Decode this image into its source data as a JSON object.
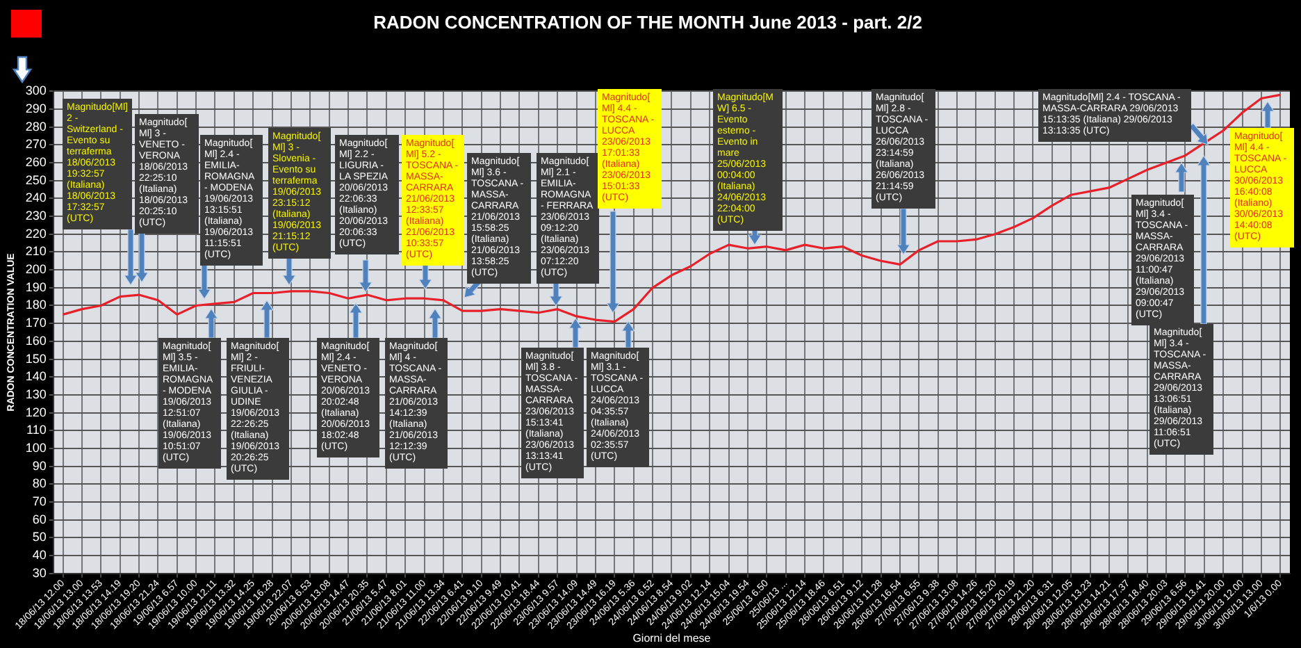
{
  "chart_data": {
    "type": "line",
    "title": "RADON CONCENTRATION OF THE MONTH June 2013 - part. 2/2",
    "xlabel": "Giorni del mese",
    "ylabel": "RADON CONCENTRATION VALUE",
    "categories": [
      "18/06/13 12.00",
      "18/06/13 13.00",
      "18/06/13 13.53",
      "18/06/13 14.19",
      "18/06/13 19.20",
      "18/06/13 21.24",
      "19/06/13 6.57",
      "19/06/13 10.00",
      "19/06/13 12.11",
      "19/06/13 13.32",
      "19/06/13 14.25",
      "19/06/13 16.28",
      "19/06/13 22.07",
      "20/06/13 6.53",
      "20/06/13 13.08",
      "20/06/13 14.47",
      "20/06/13 20.35",
      "21/06/13 5.47",
      "21/06/13 8.01",
      "21/06/13 11.00",
      "21/06/13 13.34",
      "22/06/13 6.41",
      "22/06/13 9.10",
      "22/06/13 9.49",
      "22/06/13 10.41",
      "22/06/13 18.44",
      "23/06/13 9.57",
      "23/06/13 14.09",
      "23/06/13 14.49",
      "23/06/13 16.19",
      "24/06/13 5.36",
      "24/06/13 6.52",
      "24/06/13 8.54",
      "24/06/13 9.02",
      "24/06/13 12.14",
      "24/06/13 15.04",
      "24/06/13 19.54",
      "25/06/13 6.50",
      "25/06/13 ...",
      "25/06/13 12.14",
      "25/06/13 18.46",
      "26/06/13 6.51",
      "26/06/13 9.12",
      "26/06/13 11.28",
      "26/06/13 16.54",
      "27/06/13 6.55",
      "27/06/13 9.38",
      "27/06/13 13.08",
      "27/06/13 14.26",
      "27/06/13 15.20",
      "27/06/13 20.19",
      "27/06/13 21.20",
      "28/06/13 6.31",
      "28/06/13 12.05",
      "28/06/13 13.23",
      "28/06/13 14.21",
      "28/06/13 17.37",
      "28/06/13 18.40",
      "28/06/13 20.03",
      "29/06/13 6.56",
      "29/06/13 13.41",
      "29/06/13 20.00",
      "30/06/13 12.00",
      "30/06/13 13.00",
      "1/6/13 0.00"
    ],
    "values": [
      175,
      178,
      180,
      185,
      186,
      183,
      175,
      180,
      181,
      182,
      187,
      187,
      188,
      188,
      187,
      184,
      186,
      183,
      184,
      184,
      183,
      177,
      177,
      178,
      177,
      176,
      178,
      174,
      172,
      171,
      178,
      190,
      197,
      202,
      209,
      214,
      212,
      213,
      211,
      214,
      212,
      213,
      208,
      205,
      203,
      211,
      216,
      216,
      217,
      220,
      224,
      229,
      236,
      242,
      244,
      246,
      251,
      256,
      260,
      264,
      271,
      278,
      288,
      296,
      298
    ],
    "color": "#e8202a",
    "ylim": [
      30,
      300
    ],
    "yticks": [
      30,
      40,
      50,
      60,
      70,
      80,
      90,
      100,
      110,
      120,
      130,
      140,
      150,
      160,
      170,
      180,
      190,
      200,
      210,
      220,
      230,
      240,
      250,
      260,
      270,
      280,
      290,
      300
    ],
    "grid": true,
    "annotations": [
      "Magnitudo[Ml] 2 - Switzerland - Evento su terraferma 18/06/2013 19:32:57 (Italiana) 18/06/2013 17:32:57 (UTC)",
      "Magnitudo[ Ml] 3 - VENETO - VERONA 18/06/2013 22:25:10 (Italiana) 18/06/2013 20:25:10 (UTC)",
      "Magnitudo[ Ml] 2.4 - EMILIA-ROMAGNA - MODENA 19/06/2013 13:15:51 (Italiana) 19/06/2013 11:15:51 (UTC)",
      "Magnitudo[ Ml] 3 - Slovenia - Evento su terraferma 19/06/2013 23:15:12 (Italiana) 19/06/2013 21:15:12 (UTC)",
      "Magnitudo[ Ml] 2.2 - LIGURIA - LA SPEZIA 20/06/2013 22:06:33 (Italiano) 20/06/2013 20:06:33 (UTC)",
      "Magnitudo[ Ml] 5.2 - TOSCANA - MASSA-CARRARA 21/06/2013 12:33:57 (Italiana) 21/06/2013 10:33:57 (UTC)",
      "Magnitudo[ Ml] 3.6 - TOSCANA - MASSA-CARRARA 21/06/2013 15:58:25 (Italiana) 21/06/2013 13:58:25 (UTC)",
      "Magnitudo[ Ml] 2.1 - EMILIA-ROMAGNA - FERRARA 23/06/2013 09:12:20 (Italiana) 23/06/2013 07:12:20 (UTC)",
      "Magnitudo[ Ml] 4.4 - TOSCANA - LUCCA 23/06/2013 17:01:33 (Italiana) 23/06/2013 15:01:33 (UTC)",
      "Magnitudo[M W] 6.5 - Evento esterno - Evento in mare 25/06/2013 00:04:00 (Italiana) 24/06/2013 22:04:00 (UTC)",
      "Magnitudo[ Ml] 2.8 - TOSCANA - LUCCA 26/06/2013 23:14:59 (Italiana) 26/06/2013 21:14:59 (UTC)",
      "Magnitudo[Ml] 2.4 - TOSCANA - MASSA-CARRARA 29/06/2013 15:13:35 (Italiana) 29/06/2013 13:13:35 (UTC)",
      "Magnitudo[ Ml] 4.4 - TOSCANA - LUCCA 30/06/2013 16:40:08 (Italiano) 30/06/2013 14:40:08 (UTC)",
      "Magnitudo[ Ml] 3.5 - EMILIA-ROMAGNA - MODENA 19/06/2013 12:51:07 (Italiana) 19/06/2013 10:51:07 (UTC)",
      "Magnitudo[ Ml] 2 - FRIULI-VENEZIA GIULIA - UDINE 19/06/2013 22:26:25 (Italiana) 19/06/2013 20:26:25 (UTC)",
      "Magnitudo[ Ml] 2.4 - VENETO - VERONA 20/06/2013 20:02:48 (Italiana) 20/06/2013 18:02:48 (UTC)",
      "Magnitudo[ Ml] 4 - TOSCANA - MASSA-CARRARA 21/06/2013 14:12:39 (Italiana) 21/06/2013 12:12:39 (UTC)",
      "Magnitudo[ Ml] 3.8 - TOSCANA - MASSA-CARRARA 23/06/2013 15:13:41 (Italiana) 23/06/2013 13:13:41 (UTC)",
      "Magnitudo[ Ml] 3.1 - TOSCANA - LUCCA 24/06/2013 04:35:57 (Italiana) 24/06/2013 02:35:57 (UTC)",
      "Magnitudo[ Ml] 3.4 - TOSCANA - MASSA-CARRARA 29/06/2013 11:00:47 (Italiana) 29/06/2013 09:00:47 (UTC)",
      "Magnitudo[ Ml] 3.4 - TOSCANA - MASSA-CARRARA 29/06/2013 13:06:51 (Italiana) 29/06/2013 11:06:51 (UTC)"
    ]
  }
}
